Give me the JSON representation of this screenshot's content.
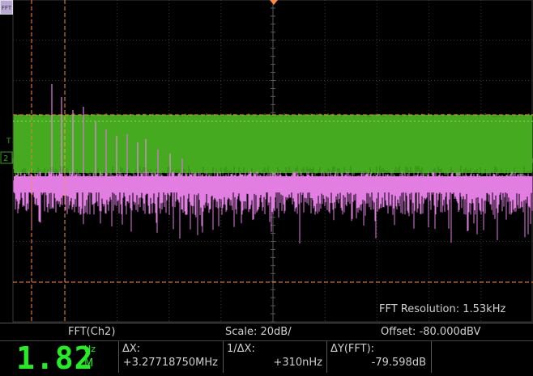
{
  "colors": {
    "grid": "#3a3a3a",
    "ch2_trace": "#e27de2",
    "fft_trace": "#3a9a1a",
    "cursor": "#ff8c40",
    "readout_green": "#22ee22"
  },
  "channel_tab": {
    "label": "FFT"
  },
  "markers": {
    "trigger": "T",
    "channel": "2"
  },
  "overlay": {
    "fft_resolution": "FFT Resolution: 1.53kHz"
  },
  "infobar": {
    "source": "FFT(Ch2)",
    "scale": "Scale: 20dB/",
    "offset": "Offset: -80.000dBV"
  },
  "readouts": {
    "big_value": "1.82",
    "unit_top": "Hz",
    "unit_bottom": "M",
    "delta_x_label": "ΔX:",
    "delta_x_value": "+3.27718750MHz",
    "inv_delta_x_label": "1/ΔX:",
    "inv_delta_x_value": "+310nHz",
    "delta_y_label": "ΔY(FFT):",
    "delta_y_value": "-79.598dB"
  }
}
